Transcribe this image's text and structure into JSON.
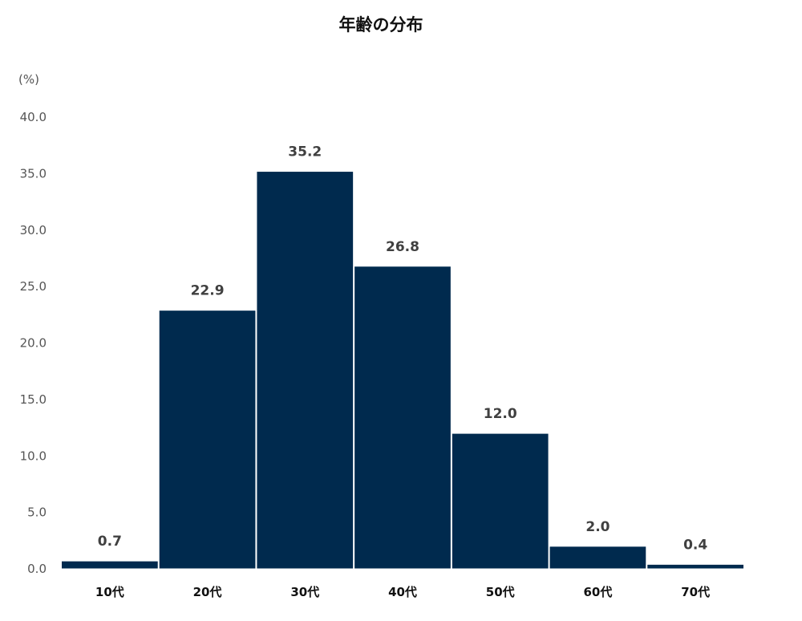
{
  "chart_data": {
    "type": "bar",
    "title": "年齢の分布",
    "ylabel": "(%)",
    "xlabel": "",
    "categories": [
      "10代",
      "20代",
      "30代",
      "40代",
      "50代",
      "60代",
      "70代"
    ],
    "values": [
      0.7,
      22.9,
      35.2,
      26.8,
      12.0,
      2.0,
      0.4
    ],
    "value_labels": [
      "0.7",
      "22.9",
      "35.2",
      "26.8",
      "12.0",
      "2.0",
      "0.4"
    ],
    "ylim": [
      0,
      40
    ],
    "yticks": [
      "0.0",
      "5.0",
      "10.0",
      "15.0",
      "20.0",
      "25.0",
      "30.0",
      "35.0",
      "40.0"
    ],
    "grid": false,
    "legend": "none",
    "colors": {
      "bar": "#002a4e",
      "bar_edge": "#ffffff"
    }
  }
}
